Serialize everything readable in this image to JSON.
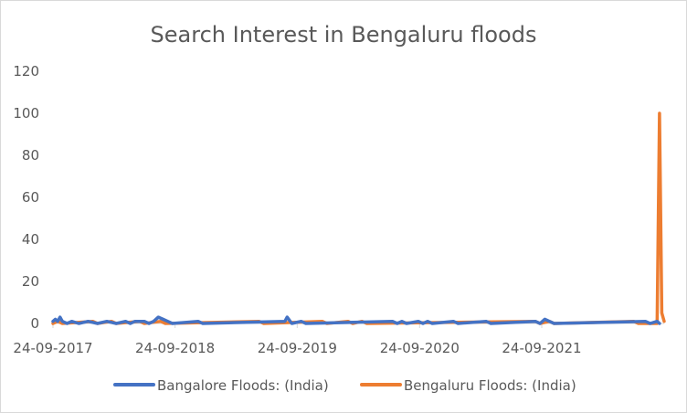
{
  "chart_data": {
    "type": "line",
    "title": "Search Interest in Bengaluru floods",
    "xlabel": "",
    "ylabel": "",
    "ylim": [
      0,
      120
    ],
    "yticks": [
      "0",
      "20",
      "40",
      "60",
      "80",
      "100",
      "120"
    ],
    "xlim": [
      "2017-09-24",
      "2022-09-25"
    ],
    "xticks": [
      "24-09-2017",
      "24-09-2018",
      "24-09-2019",
      "24-09-2020",
      "24-09-2021"
    ],
    "grid": false,
    "legend": "bottom",
    "series": [
      {
        "name": "Bangalore Floods: (India)",
        "color": "#4472c4",
        "points": [
          [
            "2017-09-24",
            1
          ],
          [
            "2017-10-01",
            2
          ],
          [
            "2017-10-08",
            1
          ],
          [
            "2017-10-15",
            3
          ],
          [
            "2017-10-22",
            1
          ],
          [
            "2017-11-05",
            0
          ],
          [
            "2017-11-19",
            1
          ],
          [
            "2017-12-10",
            0
          ],
          [
            "2018-01-07",
            1
          ],
          [
            "2018-02-04",
            0
          ],
          [
            "2018-03-04",
            1
          ],
          [
            "2018-04-01",
            0
          ],
          [
            "2018-04-29",
            1
          ],
          [
            "2018-05-13",
            0
          ],
          [
            "2018-05-27",
            1
          ],
          [
            "2018-06-24",
            1
          ],
          [
            "2018-07-08",
            0
          ],
          [
            "2018-07-22",
            1
          ],
          [
            "2018-08-05",
            3
          ],
          [
            "2018-08-19",
            2
          ],
          [
            "2018-09-02",
            1
          ],
          [
            "2018-09-16",
            0
          ],
          [
            "2018-12-02",
            1
          ],
          [
            "2018-12-16",
            0
          ],
          [
            "2019-08-18",
            1
          ],
          [
            "2019-08-25",
            3
          ],
          [
            "2019-09-08",
            0
          ],
          [
            "2019-10-06",
            1
          ],
          [
            "2019-10-20",
            0
          ],
          [
            "2020-07-05",
            1
          ],
          [
            "2020-07-19",
            0
          ],
          [
            "2020-08-02",
            1
          ],
          [
            "2020-08-16",
            0
          ],
          [
            "2020-09-20",
            1
          ],
          [
            "2020-10-04",
            0
          ],
          [
            "2020-10-18",
            1
          ],
          [
            "2020-11-01",
            0
          ],
          [
            "2021-01-03",
            1
          ],
          [
            "2021-01-17",
            0
          ],
          [
            "2021-04-11",
            1
          ],
          [
            "2021-04-25",
            0
          ],
          [
            "2021-09-05",
            1
          ],
          [
            "2021-09-19",
            0
          ],
          [
            "2021-10-03",
            2
          ],
          [
            "2021-10-17",
            1
          ],
          [
            "2021-10-31",
            0
          ],
          [
            "2022-07-31",
            1
          ],
          [
            "2022-08-14",
            0
          ],
          [
            "2022-09-04",
            1
          ],
          [
            "2022-09-11",
            0
          ]
        ]
      },
      {
        "name": "Bengaluru Floods: (India)",
        "color": "#ed7d31",
        "points": [
          [
            "2017-09-24",
            0
          ],
          [
            "2017-10-08",
            1
          ],
          [
            "2017-10-22",
            0
          ],
          [
            "2018-01-21",
            1
          ],
          [
            "2018-02-04",
            0
          ],
          [
            "2018-03-18",
            1
          ],
          [
            "2018-04-01",
            0
          ],
          [
            "2018-06-10",
            1
          ],
          [
            "2018-06-24",
            0
          ],
          [
            "2018-08-12",
            1
          ],
          [
            "2018-08-26",
            0
          ],
          [
            "2019-06-02",
            1
          ],
          [
            "2019-06-16",
            0
          ],
          [
            "2019-12-08",
            1
          ],
          [
            "2019-12-22",
            0
          ],
          [
            "2020-02-23",
            1
          ],
          [
            "2020-03-08",
            0
          ],
          [
            "2020-04-05",
            1
          ],
          [
            "2020-04-19",
            0
          ],
          [
            "2021-09-05",
            1
          ],
          [
            "2021-09-19",
            0
          ],
          [
            "2021-10-17",
            1
          ],
          [
            "2021-10-31",
            0
          ],
          [
            "2022-06-26",
            1
          ],
          [
            "2022-07-10",
            0
          ],
          [
            "2022-09-04",
            0
          ],
          [
            "2022-09-11",
            100
          ],
          [
            "2022-09-18",
            5
          ],
          [
            "2022-09-25",
            1
          ]
        ]
      }
    ]
  }
}
